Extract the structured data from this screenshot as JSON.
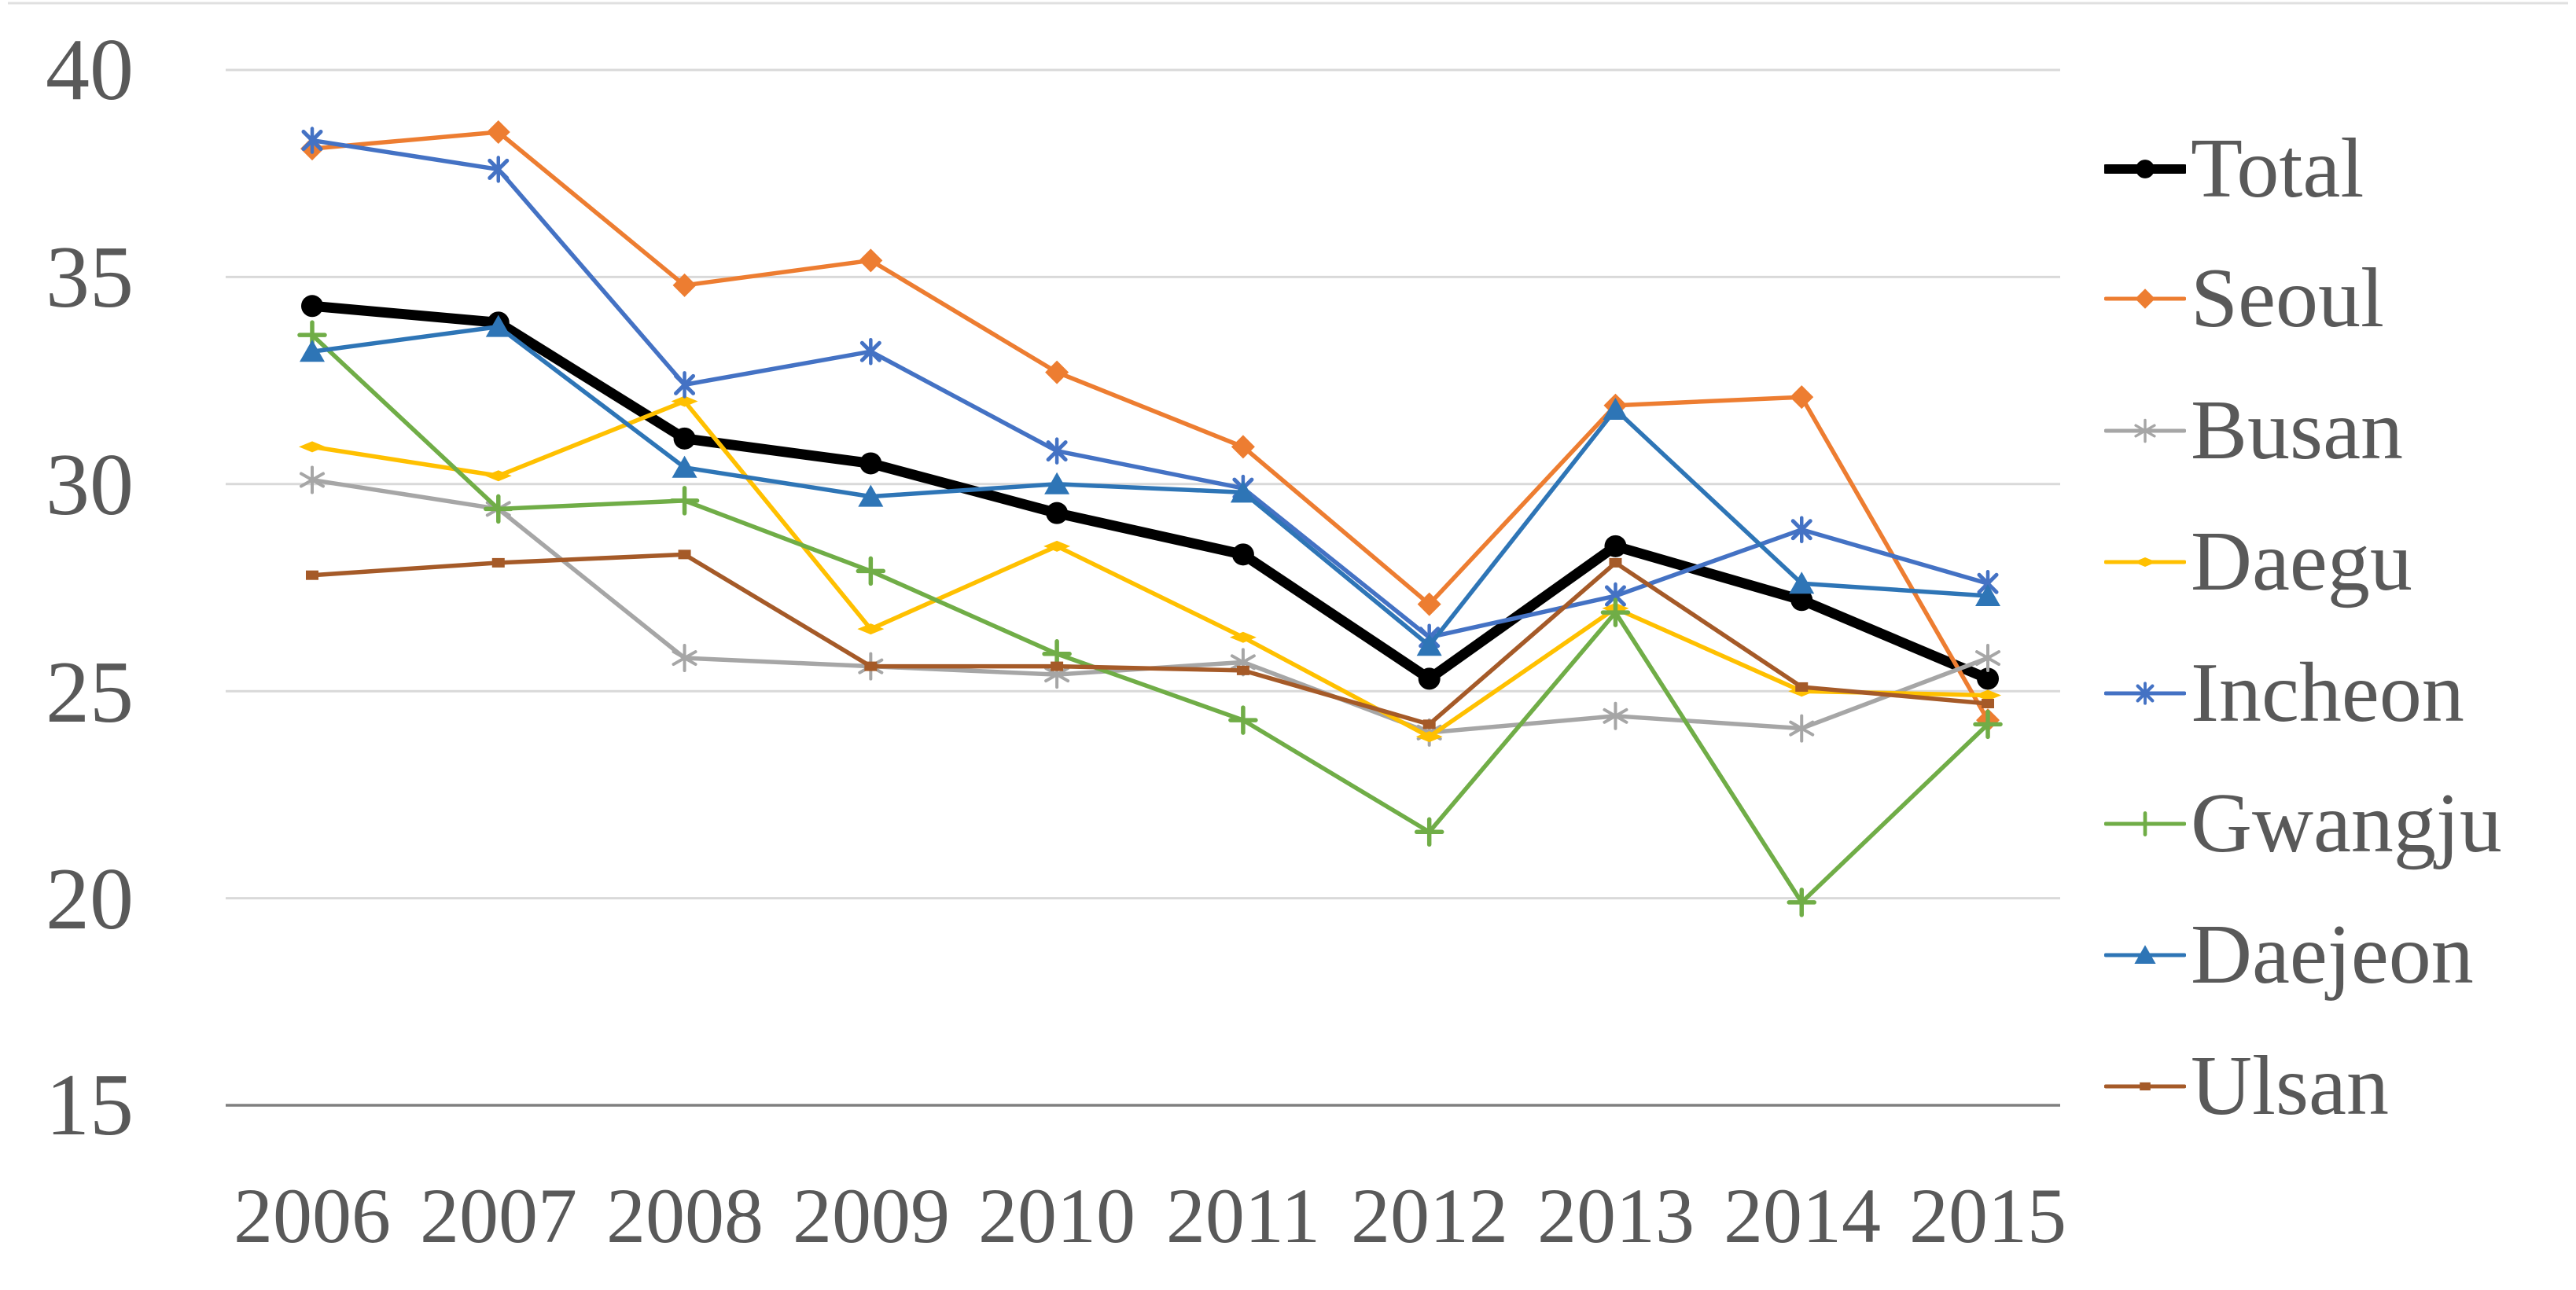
{
  "chart_data": {
    "type": "line",
    "title": "",
    "xlabel": "",
    "ylabel": "",
    "categories": [
      "2006",
      "2007",
      "2008",
      "2009",
      "2010",
      "2011",
      "2012",
      "2013",
      "2014",
      "2015"
    ],
    "y_axis": {
      "min": 15,
      "max": 40,
      "step": 5,
      "tick_labels": [
        "40",
        "35",
        "30",
        "25",
        "20",
        "15"
      ]
    },
    "grid": true,
    "legend_position": "right",
    "series": [
      {
        "name": "Total",
        "color": "#000000",
        "marker": "circle",
        "emphasis": true,
        "values": [
          34.3,
          33.9,
          31.1,
          30.5,
          29.3,
          28.3,
          25.3,
          28.5,
          27.2,
          25.3
        ]
      },
      {
        "name": "Seoul",
        "color": "#ED7D31",
        "marker": "diamond",
        "emphasis": false,
        "values": [
          38.1,
          38.5,
          34.8,
          35.4,
          32.7,
          30.9,
          27.1,
          31.9,
          32.1,
          24.3
        ]
      },
      {
        "name": "Busan",
        "color": "#A6A6A6",
        "marker": "asterisk",
        "emphasis": false,
        "values": [
          30.1,
          29.4,
          25.8,
          25.6,
          25.4,
          25.7,
          24.0,
          24.4,
          24.1,
          25.8
        ]
      },
      {
        "name": "Daegu",
        "color": "#FFC000",
        "marker": "dash",
        "emphasis": false,
        "values": [
          30.9,
          30.2,
          32.0,
          26.5,
          28.5,
          26.3,
          23.9,
          27.0,
          25.0,
          24.9
        ]
      },
      {
        "name": "Incheon",
        "color": "#4472C4",
        "marker": "x-star",
        "emphasis": false,
        "values": [
          38.3,
          37.6,
          32.4,
          33.2,
          30.8,
          29.9,
          26.3,
          27.3,
          28.9,
          27.6
        ]
      },
      {
        "name": "Gwangju",
        "color": "#70AD47",
        "marker": "plus",
        "emphasis": false,
        "values": [
          33.6,
          29.4,
          29.6,
          27.9,
          25.9,
          24.3,
          21.6,
          26.9,
          19.9,
          24.2
        ]
      },
      {
        "name": "Daejeon",
        "color": "#2E75B6",
        "marker": "triangle",
        "emphasis": false,
        "values": [
          33.2,
          33.8,
          30.4,
          29.7,
          30.0,
          29.8,
          26.1,
          31.8,
          27.6,
          27.3
        ]
      },
      {
        "name": "Ulsan",
        "color": "#A55A28",
        "marker": "square",
        "emphasis": false,
        "values": [
          27.8,
          28.1,
          28.3,
          25.6,
          25.6,
          25.5,
          24.2,
          28.1,
          25.1,
          24.7
        ]
      }
    ],
    "styles": {
      "grid_color": "#D9D9D9",
      "axis_color": "#7F7F7F",
      "text_color": "#595959",
      "background": "#FFFFFF"
    }
  }
}
